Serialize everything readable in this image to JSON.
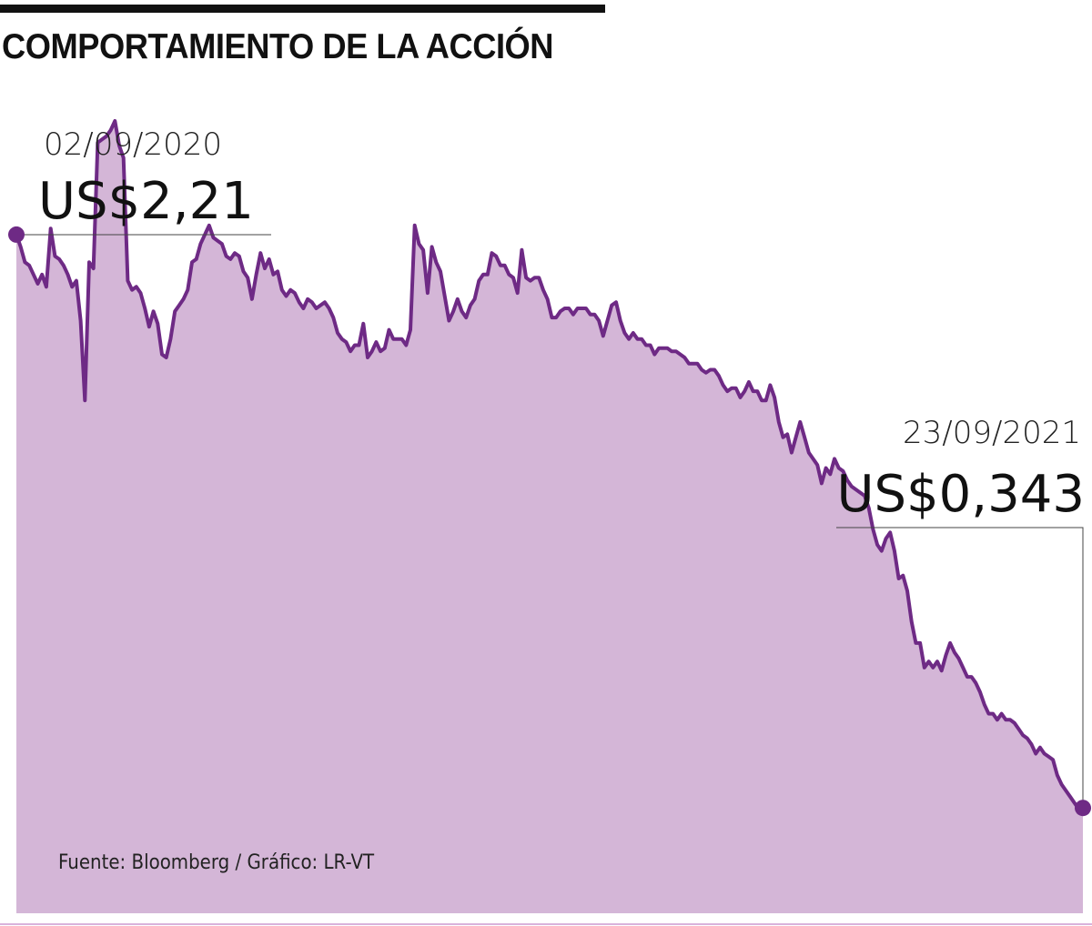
{
  "title": "COMPORTAMIENTO DE LA ACCIÓN",
  "source": "Fuente: Bloomberg / Gráfico: LR-VT",
  "colors": {
    "line": "#6e2a85",
    "fill": "#d4b6d7",
    "baseline": "#d9b3dc",
    "text": "#111111"
  },
  "chart_data": {
    "type": "area",
    "currency": "US$",
    "ylim": [
      0,
      2.9
    ],
    "grid": false,
    "annotations": [
      {
        "date": "02/09/2020",
        "label": "US$2,21",
        "value": 2.21
      },
      {
        "date": "23/09/2021",
        "label": "US$0,343",
        "value": 0.343
      }
    ],
    "values": [
      2.21,
      2.17,
      2.12,
      2.11,
      2.08,
      2.05,
      2.08,
      2.04,
      2.23,
      2.14,
      2.13,
      2.11,
      2.08,
      2.04,
      2.06,
      1.93,
      1.67,
      2.12,
      2.1,
      2.51,
      2.52,
      2.53,
      2.55,
      2.58,
      2.5,
      2.46,
      2.06,
      2.03,
      2.04,
      2.02,
      1.97,
      1.91,
      1.96,
      1.92,
      1.82,
      1.81,
      1.87,
      1.96,
      1.98,
      2.0,
      2.03,
      2.12,
      2.13,
      2.18,
      2.21,
      2.24,
      2.2,
      2.19,
      2.18,
      2.14,
      2.13,
      2.15,
      2.14,
      2.09,
      2.07,
      2.0,
      2.08,
      2.15,
      2.1,
      2.13,
      2.08,
      2.09,
      2.03,
      2.01,
      2.03,
      2.02,
      1.99,
      1.97,
      2.0,
      1.99,
      1.97,
      1.98,
      1.99,
      1.97,
      1.94,
      1.89,
      1.87,
      1.86,
      1.83,
      1.85,
      1.85,
      1.92,
      1.81,
      1.83,
      1.86,
      1.83,
      1.84,
      1.9,
      1.87,
      1.87,
      1.87,
      1.85,
      1.9,
      2.24,
      2.18,
      2.16,
      2.02,
      2.17,
      2.12,
      2.09,
      2.01,
      1.93,
      1.96,
      2.0,
      1.96,
      1.94,
      1.98,
      2.0,
      2.06,
      2.08,
      2.08,
      2.15,
      2.14,
      2.11,
      2.11,
      2.08,
      2.07,
      2.02,
      2.16,
      2.07,
      2.06,
      2.07,
      2.07,
      2.03,
      2.0,
      1.94,
      1.94,
      1.96,
      1.97,
      1.97,
      1.95,
      1.97,
      1.97,
      1.97,
      1.95,
      1.95,
      1.93,
      1.88,
      1.93,
      1.98,
      1.99,
      1.93,
      1.89,
      1.87,
      1.89,
      1.87,
      1.87,
      1.85,
      1.85,
      1.82,
      1.84,
      1.84,
      1.84,
      1.83,
      1.83,
      1.82,
      1.81,
      1.79,
      1.79,
      1.79,
      1.77,
      1.76,
      1.77,
      1.77,
      1.75,
      1.72,
      1.7,
      1.71,
      1.71,
      1.68,
      1.7,
      1.73,
      1.7,
      1.7,
      1.67,
      1.67,
      1.72,
      1.68,
      1.6,
      1.55,
      1.56,
      1.5,
      1.55,
      1.6,
      1.55,
      1.5,
      1.48,
      1.46,
      1.4,
      1.45,
      1.43,
      1.48,
      1.45,
      1.44,
      1.41,
      1.39,
      1.38,
      1.37,
      1.36,
      1.32,
      1.25,
      1.2,
      1.18,
      1.22,
      1.24,
      1.18,
      1.09,
      1.1,
      1.05,
      0.95,
      0.88,
      0.88,
      0.8,
      0.82,
      0.8,
      0.82,
      0.79,
      0.84,
      0.88,
      0.85,
      0.83,
      0.8,
      0.77,
      0.77,
      0.75,
      0.72,
      0.68,
      0.65,
      0.65,
      0.63,
      0.65,
      0.63,
      0.63,
      0.62,
      0.6,
      0.58,
      0.57,
      0.55,
      0.52,
      0.54,
      0.52,
      0.51,
      0.5,
      0.45,
      0.42,
      0.4,
      0.38,
      0.36,
      0.34,
      0.343
    ]
  }
}
